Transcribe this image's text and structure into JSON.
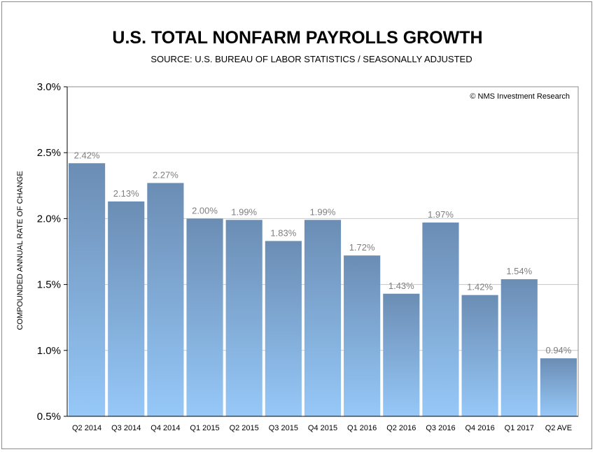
{
  "chart_data": {
    "type": "bar",
    "title": "U.S. TOTAL NONFARM PAYROLLS GROWTH",
    "subtitle": "SOURCE: U.S. BUREAU OF LABOR STATISTICS / SEASONALLY ADJUSTED",
    "ylabel": "COMPOUNDED ANNUAL RATE OF CHANGE",
    "xlabel": "",
    "credit": "© NMS Investment Research",
    "ylim": [
      0.5,
      3.0
    ],
    "yticks": [
      0.5,
      1.0,
      1.5,
      2.0,
      2.5,
      3.0
    ],
    "ytick_labels": [
      "0.5%",
      "1.0%",
      "1.5%",
      "2.0%",
      "2.5%",
      "3.0%"
    ],
    "grid": true,
    "categories": [
      "Q2 2014",
      "Q3 2014",
      "Q4 2014",
      "Q1 2015",
      "Q2 2015",
      "Q3 2015",
      "Q4 2015",
      "Q1 2016",
      "Q2 2016",
      "Q3 2016",
      "Q4 2016",
      "Q1 2017",
      "Q2 AVE"
    ],
    "values": [
      2.42,
      2.13,
      2.27,
      2.0,
      1.99,
      1.83,
      1.99,
      1.72,
      1.43,
      1.97,
      1.42,
      1.54,
      0.94
    ],
    "data_labels": [
      "2.42%",
      "2.13%",
      "2.27%",
      "2.00%",
      "1.99%",
      "1.83%",
      "1.99%",
      "1.72%",
      "1.43%",
      "1.97%",
      "1.42%",
      "1.54%",
      "0.94%"
    ],
    "colors": {
      "bar_top": "#6b8db4",
      "bar_bottom": "#96c8f8",
      "grid": "#c8c8c8",
      "label": "#7f7f7f"
    }
  }
}
